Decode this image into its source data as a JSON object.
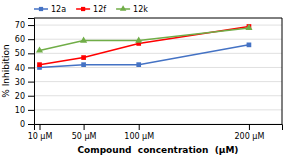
{
  "chart_data": {
    "type": "line",
    "x": [
      10,
      50,
      100,
      200
    ],
    "xticks": [
      {
        "value": 10,
        "label": "10 μM"
      },
      {
        "value": 50,
        "label": "50 μM"
      },
      {
        "value": 100,
        "label": "100 μM"
      },
      {
        "value": 200,
        "label": "200 μM"
      }
    ],
    "xlim": [
      5,
      230
    ],
    "ylim": [
      0,
      75
    ],
    "yticks": [
      0,
      10,
      20,
      30,
      40,
      50,
      60,
      70
    ],
    "xlabel": "Compound  concentration  (μM)",
    "ylabel": "% Inhibition",
    "grid": true,
    "legend": "upper left",
    "series": [
      {
        "name": "12a",
        "color": "#4472C4",
        "marker": "square",
        "values": [
          40,
          42,
          42,
          56
        ]
      },
      {
        "name": "12f",
        "color": "#FF0000",
        "marker": "square",
        "values": [
          42,
          47,
          57,
          69
        ]
      },
      {
        "name": "12k",
        "color": "#70AD47",
        "marker": "triangle",
        "values": [
          52,
          59,
          59,
          68
        ]
      }
    ]
  }
}
